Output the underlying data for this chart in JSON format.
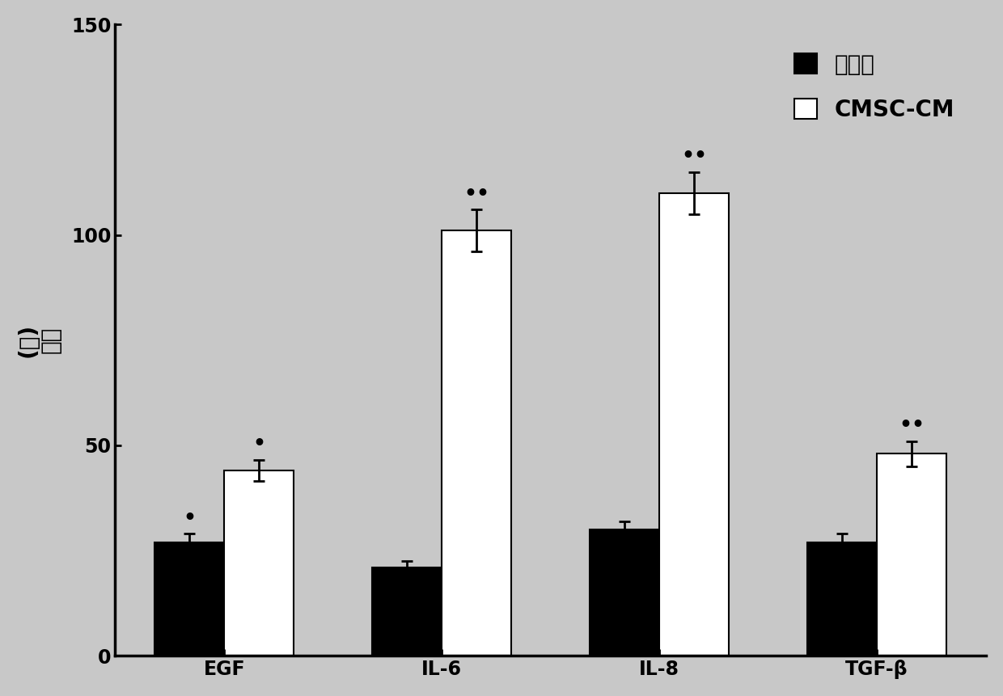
{
  "categories": [
    "EGF",
    "IL-6",
    "IL-8",
    "TGF-β"
  ],
  "experimental_values": [
    27,
    21,
    30,
    27
  ],
  "cmsc_cm_values": [
    44,
    101,
    110,
    48
  ],
  "experimental_errors": [
    2,
    1.5,
    2,
    2
  ],
  "cmsc_cm_errors": [
    2.5,
    5,
    5,
    3
  ],
  "experimental_color": "#000000",
  "cmsc_cm_color": "#ffffff",
  "bar_width": 0.32,
  "ylim": [
    0,
    150
  ],
  "yticks": [
    0,
    50,
    100,
    150
  ],
  "ylabel_chars": [
    "(％)",
    "率比"
  ],
  "legend_label_exp": "实验组",
  "legend_label_cmsc": "CMSC-CM",
  "significance_exp": [
    "•",
    "",
    "",
    ""
  ],
  "significance_cmsc": [
    "•",
    "••",
    "••",
    "••"
  ],
  "background_color": "#c8c8c8",
  "plot_bg_color": "#c8c8c8",
  "fontsize_axis": 16,
  "fontsize_tick": 15,
  "fontsize_legend": 16,
  "fontsize_significance": 16,
  "spine_linewidth": 2.5
}
